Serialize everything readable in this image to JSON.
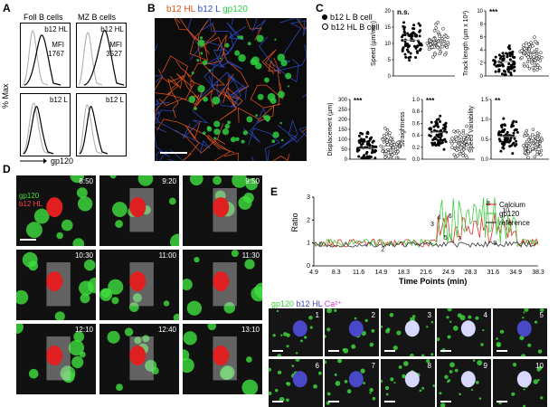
{
  "panels": {
    "a": "A",
    "b": "B",
    "c": "C",
    "d": "D",
    "e": "E"
  },
  "panelA": {
    "col_foll": "Foll B cells",
    "col_mz": "MZ B cells",
    "ylabel": "% Max",
    "xlabel": "gp120",
    "tl_name": "b12 HL",
    "tl_mfi_label": "MFI",
    "tl_mfi": "1767",
    "tr_name": "b12 HL",
    "tr_mfi_label": "MFI",
    "tr_mfi": "3527",
    "bl_name": "b12 L",
    "br_name": "b12 L"
  },
  "panelB": {
    "title_a": "b12 HL",
    "title_b": "b12 L",
    "title_c": "gp120",
    "colors": {
      "hl": "#e8541c",
      "l": "#2e4cc8",
      "gp": "#2ecc40"
    }
  },
  "panelC": {
    "legend_l": "b12 L B cell",
    "legend_hl": "b12 HL B cell",
    "plots": [
      {
        "ylabel": "Speed (µm/min)",
        "sig": "n.s.",
        "ticks": [
          "0",
          "5",
          "10",
          "15",
          "20"
        ],
        "ymax": 20
      },
      {
        "ylabel": "Track length (µm x 10²)",
        "sig": "***",
        "ticks": [
          "0",
          "2",
          "4",
          "6",
          "8",
          "10"
        ],
        "ymax": 10
      },
      {
        "ylabel": "Displacement (µm)",
        "sig": "***",
        "ticks": [
          "0",
          "50",
          "100",
          "150",
          "200",
          "250",
          "300"
        ],
        "ymax": 300
      },
      {
        "ylabel": "Straightness",
        "sig": "***",
        "ticks": [
          "0.0",
          "0.2",
          "0.4",
          "0.6",
          "0.8",
          "1.0"
        ],
        "ymax": 1.0
      },
      {
        "ylabel": "Speed Variability",
        "sig": "**",
        "ticks": [
          "0.0",
          "0.5",
          "1.0",
          "1.5"
        ],
        "ymax": 1.5
      }
    ]
  },
  "panelD": {
    "legend_gp": "gp120",
    "legend_hl": "b12 HL",
    "times": [
      "8:50",
      "9:20",
      "9:50",
      "10:30",
      "11:00",
      "11:30",
      "12:10",
      "12:40",
      "13:10"
    ]
  },
  "panelE": {
    "ylabel": "Ratio",
    "xlabel": "Time Points (min)",
    "legend": [
      "Calcium",
      "gp120",
      "reference"
    ],
    "yticks": [
      "0",
      "1",
      "2",
      "3"
    ],
    "xticks": [
      "4.9",
      "8.3",
      "11.6",
      "14.9",
      "18.3",
      "21.6",
      "24.9",
      "28.3",
      "31.6",
      "34.9",
      "38.3"
    ],
    "markers": [
      "1",
      "2",
      "3",
      "4",
      "5",
      "6",
      "7",
      "8",
      "9",
      "10"
    ],
    "ca_legend_gp": "gp120",
    "ca_legend_hl": "b12 HL",
    "ca_legend_ca": "Ca²⁺",
    "frames": [
      "1",
      "2",
      "3",
      "4",
      "5",
      "6",
      "7",
      "8",
      "9",
      "10"
    ],
    "colors": {
      "calcium": "#e03030",
      "gp120": "#3ecf3e",
      "reference": "#333333"
    }
  }
}
